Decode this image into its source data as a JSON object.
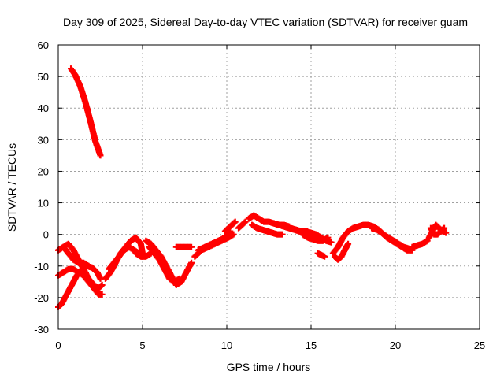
{
  "chart_data": {
    "type": "scatter",
    "title": "Day 309 of 2025, Sidereal Day-to-day VTEC variation (SDTVAR) for receiver guam",
    "xlabel": "GPS time / hours",
    "ylabel": "SDTVAR / TECUs",
    "xlim": [
      0,
      25
    ],
    "ylim": [
      -30,
      60
    ],
    "xticks": [
      0,
      5,
      10,
      15,
      20,
      25
    ],
    "yticks": [
      -30,
      -20,
      -10,
      0,
      10,
      20,
      30,
      40,
      50,
      60
    ],
    "xtick_labels": [
      "0",
      "5",
      "10",
      "15",
      "20",
      "25"
    ],
    "ytick_labels": [
      "-30",
      "-20",
      "-10",
      "0",
      "10",
      "20",
      "30",
      "40",
      "50",
      "60"
    ],
    "grid": true,
    "marker": "+",
    "series": [
      {
        "name": "arc-1",
        "color": "#ff0000",
        "x": [
          0.75,
          1.0,
          1.3,
          1.6,
          1.9,
          2.2,
          2.5
        ],
        "y": [
          52.5,
          50.5,
          47,
          42,
          36,
          29.5,
          25
        ]
      },
      {
        "name": "arc-2",
        "color": "#ff0000",
        "x": [
          0.0,
          0.3,
          0.6,
          0.9,
          1.2,
          1.5,
          1.8,
          2.1,
          2.4,
          2.6
        ],
        "y": [
          -5,
          -4,
          -3,
          -5,
          -8,
          -11,
          -14,
          -16,
          -17,
          -16
        ]
      },
      {
        "name": "arc-3",
        "color": "#ff0000",
        "x": [
          0.0,
          0.3,
          0.6,
          0.9,
          1.2,
          1.5,
          1.8,
          2.1,
          2.4,
          2.6
        ],
        "y": [
          -13,
          -12,
          -11,
          -11,
          -12,
          -13,
          -15,
          -17,
          -19,
          -19
        ]
      },
      {
        "name": "arc-4",
        "color": "#ff0000",
        "x": [
          0.0,
          0.2,
          0.5,
          0.8,
          1.1,
          1.4,
          1.7,
          2.0,
          2.3,
          2.5
        ],
        "y": [
          -23,
          -22,
          -19,
          -16,
          -13,
          -11,
          -10,
          -10.5,
          -12,
          -14
        ]
      },
      {
        "name": "arc-5",
        "color": "#ff0000",
        "x": [
          0.3,
          0.6,
          0.9,
          1.2,
          1.5,
          1.8
        ],
        "y": [
          -4,
          -6,
          -8,
          -9,
          -9,
          -10
        ]
      },
      {
        "name": "arc-6",
        "color": "#ff0000",
        "x": [
          2.8,
          3.1,
          3.4,
          3.7,
          4.0,
          4.3,
          4.6,
          4.9,
          5.0
        ],
        "y": [
          -14,
          -12,
          -9,
          -6,
          -4,
          -2,
          -1,
          -3,
          -6
        ]
      },
      {
        "name": "arc-7",
        "color": "#ff0000",
        "x": [
          3.0,
          3.3,
          3.6,
          3.9,
          4.2,
          4.5,
          4.8,
          5.0
        ],
        "y": [
          -11,
          -9,
          -7,
          -5,
          -4,
          -5,
          -6,
          -7
        ]
      },
      {
        "name": "arc-8",
        "color": "#ff0000",
        "x": [
          4.6,
          4.9,
          5.2,
          5.5
        ],
        "y": [
          -6,
          -7,
          -7,
          -6
        ]
      },
      {
        "name": "arc-9",
        "color": "#ff0000",
        "x": [
          5.2,
          5.5,
          5.8,
          6.1,
          6.4,
          6.7,
          7.0,
          7.3,
          7.6,
          7.9
        ],
        "y": [
          -2,
          -3,
          -5,
          -7,
          -10,
          -13,
          -16,
          -15,
          -12,
          -9
        ]
      },
      {
        "name": "arc-10",
        "color": "#ff0000",
        "x": [
          5.4,
          5.7,
          6.0,
          6.3,
          6.6,
          6.9,
          7.2
        ],
        "y": [
          -4,
          -6,
          -8,
          -11,
          -14,
          -15,
          -14
        ]
      },
      {
        "name": "arc-11",
        "color": "#ff0000",
        "x": [
          7.0,
          7.3,
          7.6,
          7.9
        ],
        "y": [
          -4,
          -4,
          -4,
          -4
        ]
      },
      {
        "name": "arc-12",
        "color": "#ff0000",
        "x": [
          8.1,
          8.5,
          8.9,
          9.3,
          9.7,
          10.1,
          10.4
        ],
        "y": [
          -7,
          -5,
          -4,
          -3,
          -2,
          -1,
          0
        ]
      },
      {
        "name": "arc-13",
        "color": "#ff0000",
        "x": [
          8.3,
          8.7,
          9.1,
          9.5,
          9.9,
          10.2
        ],
        "y": [
          -5,
          -4,
          -3,
          -2,
          -1,
          1
        ]
      },
      {
        "name": "arc-14",
        "color": "#ff0000",
        "x": [
          9.9,
          10.1,
          10.3,
          10.5
        ],
        "y": [
          1,
          2,
          3,
          4
        ]
      },
      {
        "name": "arc-15",
        "color": "#ff0000",
        "x": [
          10.7,
          10.9,
          11.1
        ],
        "y": [
          2,
          3,
          4
        ]
      },
      {
        "name": "arc-16",
        "color": "#ff0000",
        "x": [
          11.3,
          11.6,
          11.9,
          12.2,
          12.5,
          12.8,
          13.1,
          13.4,
          13.7
        ],
        "y": [
          5,
          6,
          5,
          4,
          4,
          3.5,
          3,
          3,
          2.5
        ]
      },
      {
        "name": "arc-17",
        "color": "#ff0000",
        "x": [
          11.5,
          11.8,
          12.1,
          12.4,
          12.7,
          13.0,
          13.3
        ],
        "y": [
          3,
          2,
          1.5,
          1,
          0.5,
          0,
          0
        ]
      },
      {
        "name": "arc-18",
        "color": "#ff0000",
        "x": [
          12.8,
          13.1,
          13.4,
          13.7,
          14.0,
          14.3
        ],
        "y": [
          3.5,
          3,
          2.5,
          2,
          1.5,
          1
        ]
      },
      {
        "name": "arc-19",
        "color": "#ff0000",
        "x": [
          13.8,
          14.1,
          14.4,
          14.7,
          15.0,
          15.3,
          15.6,
          15.9,
          16.2
        ],
        "y": [
          2,
          1.5,
          1,
          1,
          0.5,
          0,
          -1,
          -2,
          -2.5
        ]
      },
      {
        "name": "arc-20",
        "color": "#ff0000",
        "x": [
          14.5,
          14.8,
          15.1,
          15.4,
          15.7,
          16.0
        ],
        "y": [
          0,
          -1,
          -1.5,
          -2,
          -2,
          -1
        ]
      },
      {
        "name": "arc-21",
        "color": "#ff0000",
        "x": [
          16.3,
          16.6,
          16.9,
          17.2,
          17.5,
          17.8,
          18.1,
          18.4,
          18.7,
          19.0,
          19.3,
          19.6,
          19.9,
          20.2,
          20.5,
          20.8
        ],
        "y": [
          -6,
          -4,
          -1,
          1,
          2,
          2.5,
          3,
          3,
          2.5,
          1.5,
          0,
          -1,
          -2,
          -3,
          -4,
          -4.5
        ]
      },
      {
        "name": "arc-22",
        "color": "#ff0000",
        "x": [
          16.4,
          16.6,
          16.8,
          17.0,
          17.2
        ],
        "y": [
          -7,
          -8,
          -7,
          -5,
          -3
        ]
      },
      {
        "name": "arc-23",
        "color": "#ff0000",
        "x": [
          15.4,
          15.6,
          15.8
        ],
        "y": [
          -6,
          -6.5,
          -7
        ]
      },
      {
        "name": "arc-24",
        "color": "#ff0000",
        "x": [
          18.6,
          18.9,
          19.2,
          19.5,
          19.8,
          20.1,
          20.4,
          20.7,
          21.0
        ],
        "y": [
          2,
          1.5,
          0.5,
          -1,
          -2,
          -3,
          -4,
          -5,
          -5
        ]
      },
      {
        "name": "arc-25",
        "color": "#ff0000",
        "x": [
          21.0,
          21.3,
          21.6,
          21.9
        ],
        "y": [
          -4,
          -3.5,
          -3,
          -2
        ]
      },
      {
        "name": "arc-26",
        "color": "#ff0000",
        "x": [
          22.0,
          22.2,
          22.4,
          22.6,
          22.8,
          23.0
        ],
        "y": [
          -1,
          1,
          3,
          2,
          1,
          0.5
        ]
      },
      {
        "name": "arc-27",
        "color": "#ff0000",
        "x": [
          22.1,
          22.3,
          22.5,
          22.7,
          22.9
        ],
        "y": [
          2,
          0,
          0,
          1,
          2
        ]
      }
    ]
  }
}
